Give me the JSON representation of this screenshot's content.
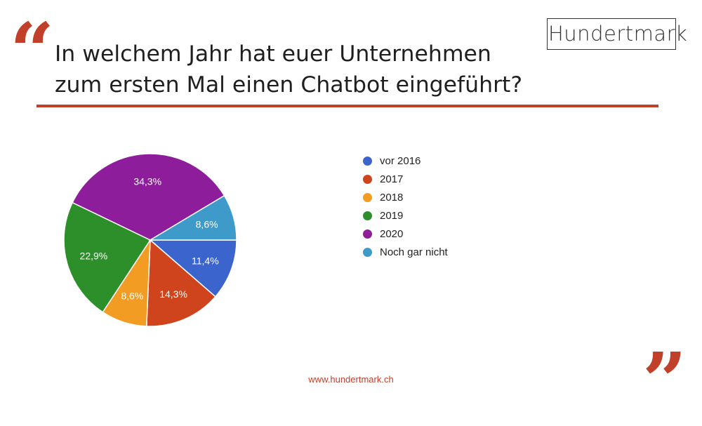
{
  "slide": {
    "title_lines": [
      "In welchem Jahr hat euer Unternehmen",
      "zum ersten Mal einen Chatbot eingeführt?"
    ],
    "logo_text": "Hundertmark",
    "open_quote": "“",
    "close_quote": "”",
    "footer_url": "www.hundertmark.ch",
    "accent_color": "#c0402a"
  },
  "chart_data": {
    "type": "pie",
    "title": "",
    "legend_position": "right",
    "slices": [
      {
        "label": "vor 2016",
        "value": 11.4,
        "value_label": "11,4%",
        "color": "#3b64cc"
      },
      {
        "label": "2017",
        "value": 14.3,
        "value_label": "14,3%",
        "color": "#d0441d"
      },
      {
        "label": "2018",
        "value": 8.6,
        "value_label": "8,6%",
        "color": "#f39c23"
      },
      {
        "label": "2019",
        "value": 22.9,
        "value_label": "22,9%",
        "color": "#2d8f2a"
      },
      {
        "label": "2020",
        "value": 34.3,
        "value_label": "34,3%",
        "color": "#8e1d9c"
      },
      {
        "label": "Noch gar nicht",
        "value": 8.6,
        "value_label": "8,6%",
        "color": "#3e9ac9"
      }
    ]
  }
}
